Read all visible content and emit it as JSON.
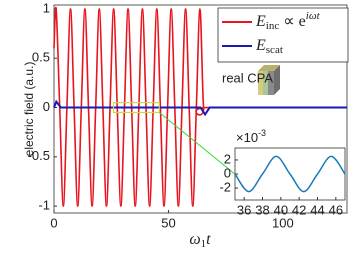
{
  "chart_data": {
    "type": "line",
    "xlabel": "ω1t",
    "xlabel_sub": "1",
    "ylabel": "electric field (a.u.)",
    "xlim": [
      0,
      128
    ],
    "ylim": [
      -1.07,
      1.04
    ],
    "xticks": [
      0,
      50,
      100
    ],
    "yticks": [
      -1,
      -0.5,
      0,
      0.5,
      1
    ],
    "series": [
      {
        "name": "E",
        "subscript": "inc",
        "suffix": " ∝ e",
        "superscript": "iωt",
        "color": "#e8141e",
        "x": [
          0,
          0.93,
          2.5,
          4.07,
          5.64,
          7.21,
          8.78,
          10.35,
          11.93,
          13.5,
          15.07,
          16.64,
          18.21,
          19.78,
          21.35,
          22.92,
          24.49,
          26.06,
          27.63,
          29.2,
          30.78,
          32.35,
          33.92,
          35.49,
          37.06,
          38.63,
          40.2,
          41.77,
          43.34,
          44.91,
          46.48,
          48.05,
          49.62,
          51.2,
          52.77,
          54.34,
          55.91,
          57.48,
          59.05,
          60.62,
          62.19,
          63.76,
          65.33,
          67,
          128
        ],
        "values": [
          0.6,
          1,
          0,
          -1,
          0,
          1,
          0,
          -1,
          0,
          1,
          0,
          -1,
          0,
          1,
          0,
          -1,
          0,
          1,
          0,
          -1,
          0,
          1,
          0,
          -1,
          0,
          1,
          0,
          -1,
          0,
          1,
          0,
          -1,
          0,
          1,
          0,
          -1,
          0,
          1,
          0,
          -1,
          0,
          1,
          0,
          0,
          0
        ]
      },
      {
        "name": "E",
        "subscript": "scat",
        "color": "#1a1ab4",
        "x": [
          0,
          1,
          3,
          64,
          66,
          68,
          128
        ],
        "values": [
          0,
          0.06,
          0,
          0,
          -0.07,
          0,
          0
        ]
      }
    ],
    "annotation": "real CPA",
    "zoom_box": {
      "xlim": [
        26,
        46
      ],
      "ylim": [
        -0.05,
        0.05
      ]
    },
    "inset": {
      "type": "line",
      "xlim": [
        35,
        47
      ],
      "ylim": [
        -0.0037,
        0.0037
      ],
      "xticks": [
        36,
        38,
        40,
        42,
        44,
        46
      ],
      "yticks": [
        {
          "value": -0.002,
          "label": "-2"
        },
        {
          "value": 0,
          "label": "0"
        },
        {
          "value": 0.002,
          "label": "2"
        }
      ],
      "exponent_base": "×10",
      "exponent_power": "-3",
      "x": [
        35,
        36.5,
        38,
        39.5,
        41,
        42.5,
        44,
        45.5,
        47
      ],
      "values": [
        0,
        -0.0025,
        0,
        0.0025,
        0,
        -0.0025,
        0,
        0.0025,
        0
      ],
      "color": "#1a7ab8"
    }
  }
}
